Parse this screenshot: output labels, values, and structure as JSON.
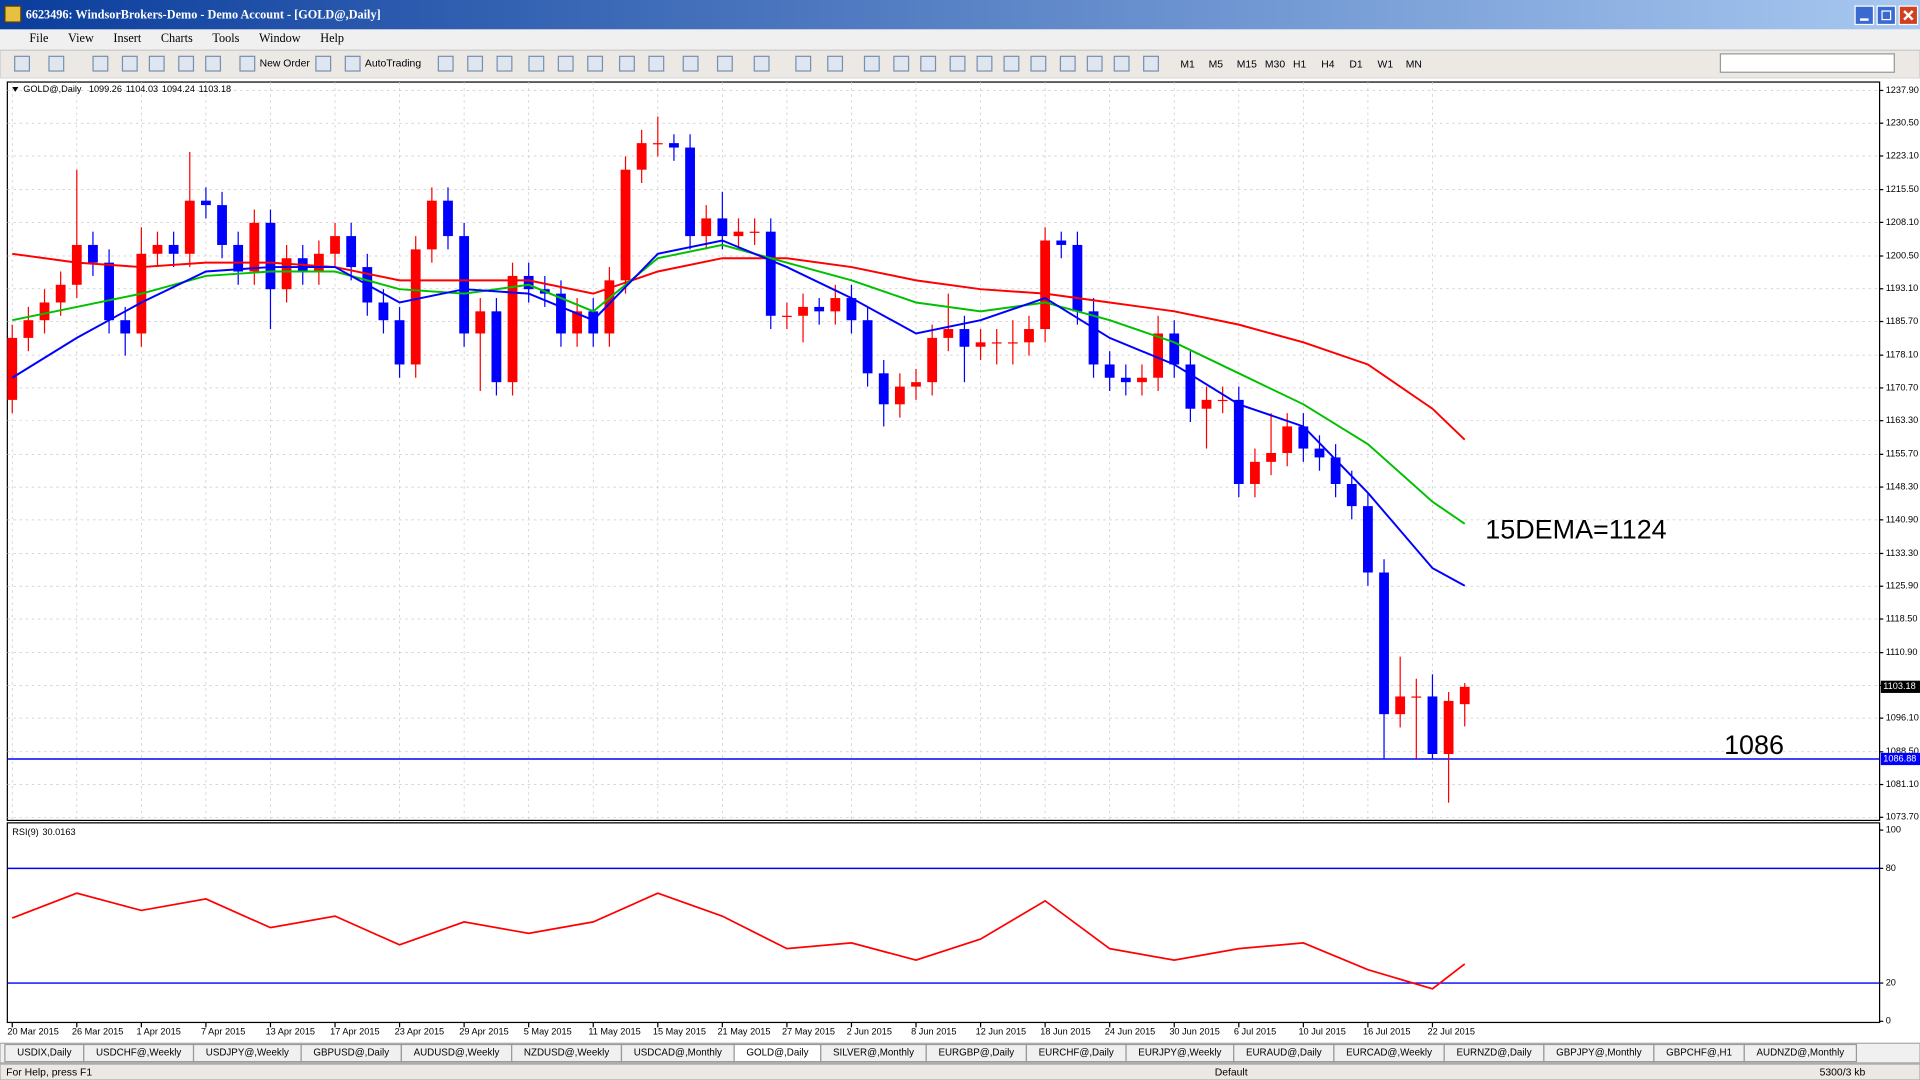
{
  "window_title": "6623496: WindsorBrokers-Demo - Demo Account - [GOLD@,Daily]",
  "menu": [
    "File",
    "View",
    "Insert",
    "Charts",
    "Tools",
    "Window",
    "Help"
  ],
  "toolbar": {
    "new_order": "New Order",
    "autotrading": "AutoTrading",
    "timeframes": [
      "M1",
      "M5",
      "M15",
      "M30",
      "H1",
      "H4",
      "D1",
      "W1",
      "MN"
    ]
  },
  "chart_data": [
    {
      "type": "candlestick",
      "title": "GOLD@,Daily",
      "up_color": "#ff0000",
      "down_color": "#0000ff",
      "grid": true,
      "categories": [
        "20 Mar 2015",
        null,
        null,
        null,
        "26 Mar 2015",
        null,
        null,
        null,
        "1 Apr 2015",
        null,
        null,
        null,
        "7 Apr 2015",
        null,
        null,
        null,
        "13 Apr 2015",
        null,
        null,
        null,
        "17 Apr 2015",
        null,
        null,
        null,
        "23 Apr 2015",
        null,
        null,
        null,
        "29 Apr 2015",
        null,
        null,
        null,
        "5 May 2015",
        null,
        null,
        null,
        "11 May 2015",
        null,
        null,
        null,
        "15 May 2015",
        null,
        null,
        null,
        "21 May 2015",
        null,
        null,
        null,
        "27 May 2015",
        null,
        null,
        null,
        "2 Jun 2015",
        null,
        null,
        null,
        "8 Jun 2015",
        null,
        null,
        null,
        "12 Jun 2015",
        null,
        null,
        null,
        "18 Jun 2015",
        null,
        null,
        null,
        "24 Jun 2015",
        null,
        null,
        null,
        "30 Jun 2015",
        null,
        null,
        null,
        "6 Jul 2015",
        null,
        null,
        null,
        "10 Jul 2015",
        null,
        null,
        null,
        "16 Jul 2015",
        null,
        null,
        null,
        "22 Jul 2015",
        null,
        null
      ],
      "open": [
        1168,
        1182,
        1186,
        1190,
        1194,
        1203,
        1199,
        1186,
        1183,
        1201,
        1203,
        1201,
        1213,
        1212,
        1203,
        1197,
        1208,
        1193,
        1200,
        1197,
        1201,
        1205,
        1198,
        1190,
        1186,
        1176,
        1202,
        1213,
        1205,
        1183,
        1188,
        1172,
        1196,
        1193,
        1192,
        1183,
        1188,
        1183,
        1195,
        1220,
        1226,
        1226,
        1225,
        1205,
        1209,
        1205,
        1206,
        1206,
        1187,
        1187,
        1189,
        1188,
        1191,
        1186,
        1174,
        1167,
        1171,
        1172,
        1182,
        1184,
        1180,
        1181,
        1181,
        1181,
        1184,
        1204,
        1203,
        1188,
        1176,
        1173,
        1172,
        1173,
        1183,
        1176,
        1166,
        1168,
        1168,
        1149,
        1154,
        1156,
        1162,
        1157,
        1155,
        1149,
        1144,
        1129,
        1097,
        1101,
        1101,
        1088,
        1099.26
      ],
      "high": [
        1185,
        1189,
        1193,
        1197,
        1220,
        1206,
        1202,
        1189,
        1207,
        1206,
        1206,
        1224,
        1216,
        1215,
        1206,
        1211,
        1211,
        1203,
        1203,
        1204,
        1208,
        1208,
        1201,
        1193,
        1189,
        1205,
        1216,
        1216,
        1208,
        1191,
        1191,
        1199,
        1199,
        1196,
        1195,
        1191,
        1191,
        1198,
        1223,
        1229,
        1232,
        1228,
        1228,
        1212,
        1215,
        1209,
        1209,
        1209,
        1190,
        1192,
        1191,
        1194,
        1194,
        1189,
        1177,
        1174,
        1175,
        1185,
        1192,
        1187,
        1184,
        1184,
        1186,
        1187,
        1207,
        1206,
        1206,
        1191,
        1179,
        1176,
        1176,
        1187,
        1186,
        1179,
        1171,
        1171,
        1171,
        1157,
        1165,
        1165,
        1165,
        1160,
        1158,
        1152,
        1147,
        1132,
        1110,
        1105,
        1106,
        1102,
        1104.03
      ],
      "low": [
        1165,
        1179,
        1183,
        1187,
        1191,
        1196,
        1183,
        1178,
        1180,
        1198,
        1198,
        1198,
        1209,
        1200,
        1194,
        1194,
        1184,
        1190,
        1194,
        1194,
        1198,
        1195,
        1187,
        1183,
        1173,
        1173,
        1199,
        1202,
        1180,
        1170,
        1169,
        1169,
        1190,
        1189,
        1180,
        1180,
        1180,
        1180,
        1192,
        1217,
        1223,
        1222,
        1202,
        1202,
        1202,
        1202,
        1203,
        1184,
        1184,
        1181,
        1185,
        1185,
        1183,
        1171,
        1162,
        1164,
        1168,
        1169,
        1179,
        1172,
        1177,
        1176,
        1176,
        1178,
        1181,
        1200,
        1185,
        1173,
        1170,
        1169,
        1169,
        1170,
        1173,
        1163,
        1157,
        1165,
        1146,
        1146,
        1151,
        1153,
        1154,
        1152,
        1146,
        1141,
        1126,
        1087,
        1094,
        1087,
        1087,
        1077,
        1094.24
      ],
      "close": [
        1182,
        1186,
        1190,
        1194,
        1203,
        1199,
        1186,
        1183,
        1201,
        1203,
        1201,
        1213,
        1212,
        1203,
        1197,
        1208,
        1193,
        1200,
        1197,
        1201,
        1205,
        1198,
        1190,
        1186,
        1176,
        1202,
        1213,
        1205,
        1183,
        1188,
        1172,
        1196,
        1193,
        1192,
        1183,
        1188,
        1183,
        1195,
        1220,
        1226,
        1226,
        1225,
        1205,
        1209,
        1205,
        1206,
        1206,
        1187,
        1187,
        1189,
        1188,
        1191,
        1186,
        1174,
        1167,
        1171,
        1172,
        1182,
        1184,
        1180,
        1181,
        1181,
        1181,
        1184,
        1204,
        1203,
        1188,
        1176,
        1173,
        1172,
        1173,
        1183,
        1176,
        1166,
        1168,
        1168,
        1149,
        1154,
        1156,
        1162,
        1157,
        1155,
        1149,
        1144,
        1129,
        1097,
        1101,
        1101,
        1088,
        1100,
        1103.18
      ],
      "series": [
        {
          "color": "#ff0000",
          "x": [
            0,
            4,
            8,
            12,
            16,
            20,
            24,
            28,
            32,
            36,
            40,
            44,
            48,
            52,
            56,
            60,
            64,
            68,
            72,
            76,
            80,
            84,
            88,
            90
          ],
          "values": [
            1201,
            1199,
            1198,
            1199,
            1199,
            1198,
            1195,
            1195,
            1195,
            1192,
            1197,
            1200,
            1200,
            1198,
            1195,
            1193,
            1192,
            1190,
            1188,
            1185,
            1181,
            1176,
            1166,
            1159
          ]
        },
        {
          "color": "#00c000",
          "x": [
            0,
            4,
            8,
            12,
            16,
            20,
            24,
            28,
            32,
            36,
            40,
            44,
            48,
            52,
            56,
            60,
            64,
            68,
            72,
            76,
            80,
            84,
            88,
            90
          ],
          "values": [
            1186,
            1189,
            1192,
            1196,
            1197,
            1197,
            1193,
            1192,
            1194,
            1188,
            1200,
            1203,
            1199,
            1195,
            1190,
            1188,
            1190,
            1186,
            1181,
            1174,
            1167,
            1158,
            1145,
            1140
          ]
        },
        {
          "color": "#0000ff",
          "x": [
            0,
            4,
            8,
            12,
            16,
            20,
            24,
            28,
            32,
            36,
            40,
            44,
            48,
            52,
            56,
            60,
            64,
            68,
            72,
            76,
            80,
            84,
            88,
            90
          ],
          "values": [
            1173,
            1182,
            1190,
            1197,
            1198,
            1198,
            1190,
            1193,
            1192,
            1186,
            1201,
            1204,
            1198,
            1191,
            1183,
            1186,
            1191,
            1182,
            1176,
            1167,
            1162,
            1147,
            1130,
            1126
          ]
        }
      ],
      "hline": {
        "value": 1086.88,
        "label": "1086.88",
        "color": "#0000ff"
      },
      "annotations": [
        "15DEMA=1124",
        "1086"
      ],
      "ylim": [
        1073.0,
        1239.8
      ],
      "yticks": [
        {
          "value": 1237.9,
          "label": "1237.90"
        },
        {
          "value": 1230.5,
          "label": "1230.50"
        },
        {
          "value": 1223.1,
          "label": "1223.10"
        },
        {
          "value": 1215.5,
          "label": "1215.50"
        },
        {
          "value": 1208.1,
          "label": "1208.10"
        },
        {
          "value": 1200.5,
          "label": "1200.50"
        },
        {
          "value": 1193.1,
          "label": "1193.10"
        },
        {
          "value": 1185.7,
          "label": "1185.70"
        },
        {
          "value": 1178.1,
          "label": "1178.10"
        },
        {
          "value": 1170.7,
          "label": "1170.70"
        },
        {
          "value": 1163.3,
          "label": "1163.30"
        },
        {
          "value": 1155.7,
          "label": "1155.70"
        },
        {
          "value": 1148.3,
          "label": "1148.30"
        },
        {
          "value": 1140.9,
          "label": "1140.90"
        },
        {
          "value": 1133.3,
          "label": "1133.30"
        },
        {
          "value": 1125.9,
          "label": "1125.90"
        },
        {
          "value": 1118.5,
          "label": "1118.50"
        },
        {
          "value": 1110.9,
          "label": "1110.90"
        },
        {
          "value": 1103.5,
          "label": "1103.50"
        },
        {
          "value": 1096.1,
          "label": "1096.10"
        },
        {
          "value": 1088.5,
          "label": "1088.50"
        },
        {
          "value": 1081.1,
          "label": "1081.10"
        },
        {
          "value": 1073.7,
          "label": "1073.70"
        }
      ]
    },
    {
      "type": "line",
      "title": "RSI(9)",
      "color": "#ff0000",
      "x": [
        0,
        4,
        8,
        12,
        16,
        20,
        24,
        28,
        32,
        36,
        40,
        44,
        48,
        52,
        56,
        60,
        64,
        68,
        72,
        76,
        80,
        84,
        88,
        90
      ],
      "values": [
        54,
        67,
        58,
        64,
        49,
        55,
        40,
        52,
        46,
        52,
        67,
        55,
        38,
        41,
        32,
        43,
        63,
        38,
        32,
        38,
        41,
        27,
        17,
        30.0163
      ],
      "levels": [
        80,
        20
      ],
      "level_color": "#0000ff",
      "ylim": [
        -0.6,
        103.8
      ],
      "yticks": [
        100,
        80,
        20,
        0
      ]
    }
  ],
  "tabs": [
    "USDIX,Daily",
    "USDCHF@,Weekly",
    "USDJPY@,Weekly",
    "GBPUSD@,Daily",
    "AUDUSD@,Weekly",
    "NZDUSD@,Weekly",
    "USDCAD@,Monthly",
    "GOLD@,Daily",
    "SILVER@,Monthly",
    "EURGBP@,Daily",
    "EURCHF@,Daily",
    "EURJPY@,Weekly",
    "EURAUD@,Daily",
    "EURCAD@,Weekly",
    "EURNZD@,Daily",
    "GBPJPY@,Monthly",
    "GBPCHF@,H1",
    "AUDNZD@,Monthly"
  ],
  "active_tab": 7,
  "status": {
    "help": "For Help, press F1",
    "profile": "Default",
    "traffic": "5300/3 kb"
  }
}
